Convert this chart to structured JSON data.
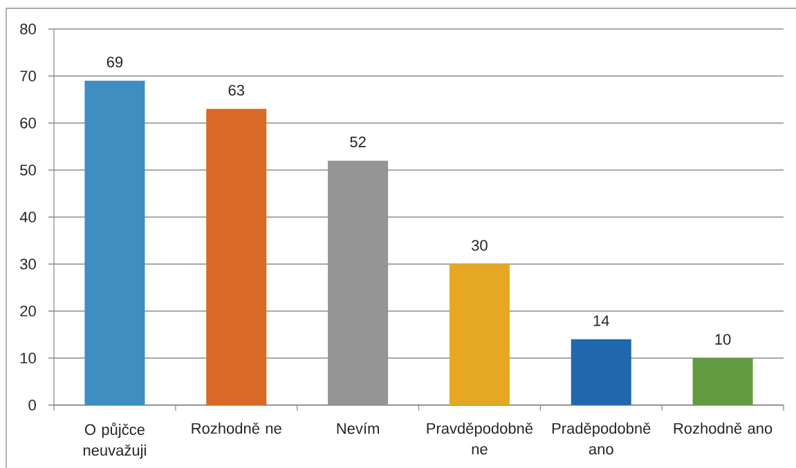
{
  "chart_data": {
    "type": "bar",
    "categories": [
      "O půjčce neuvažuji",
      "Rozhodně ne",
      "Nevím",
      "Pravděpodobně ne",
      "Praděpodobně ano",
      "Rozhodně ano"
    ],
    "values": [
      69,
      63,
      52,
      30,
      14,
      10
    ],
    "colors": [
      "#3e8ec0",
      "#d86927",
      "#959595",
      "#e6a823",
      "#2067ad",
      "#629b41"
    ],
    "ylim": [
      0,
      80
    ],
    "yticks": [
      0,
      10,
      20,
      30,
      40,
      50,
      60,
      70,
      80
    ],
    "grid": "y",
    "data_labels": true
  }
}
